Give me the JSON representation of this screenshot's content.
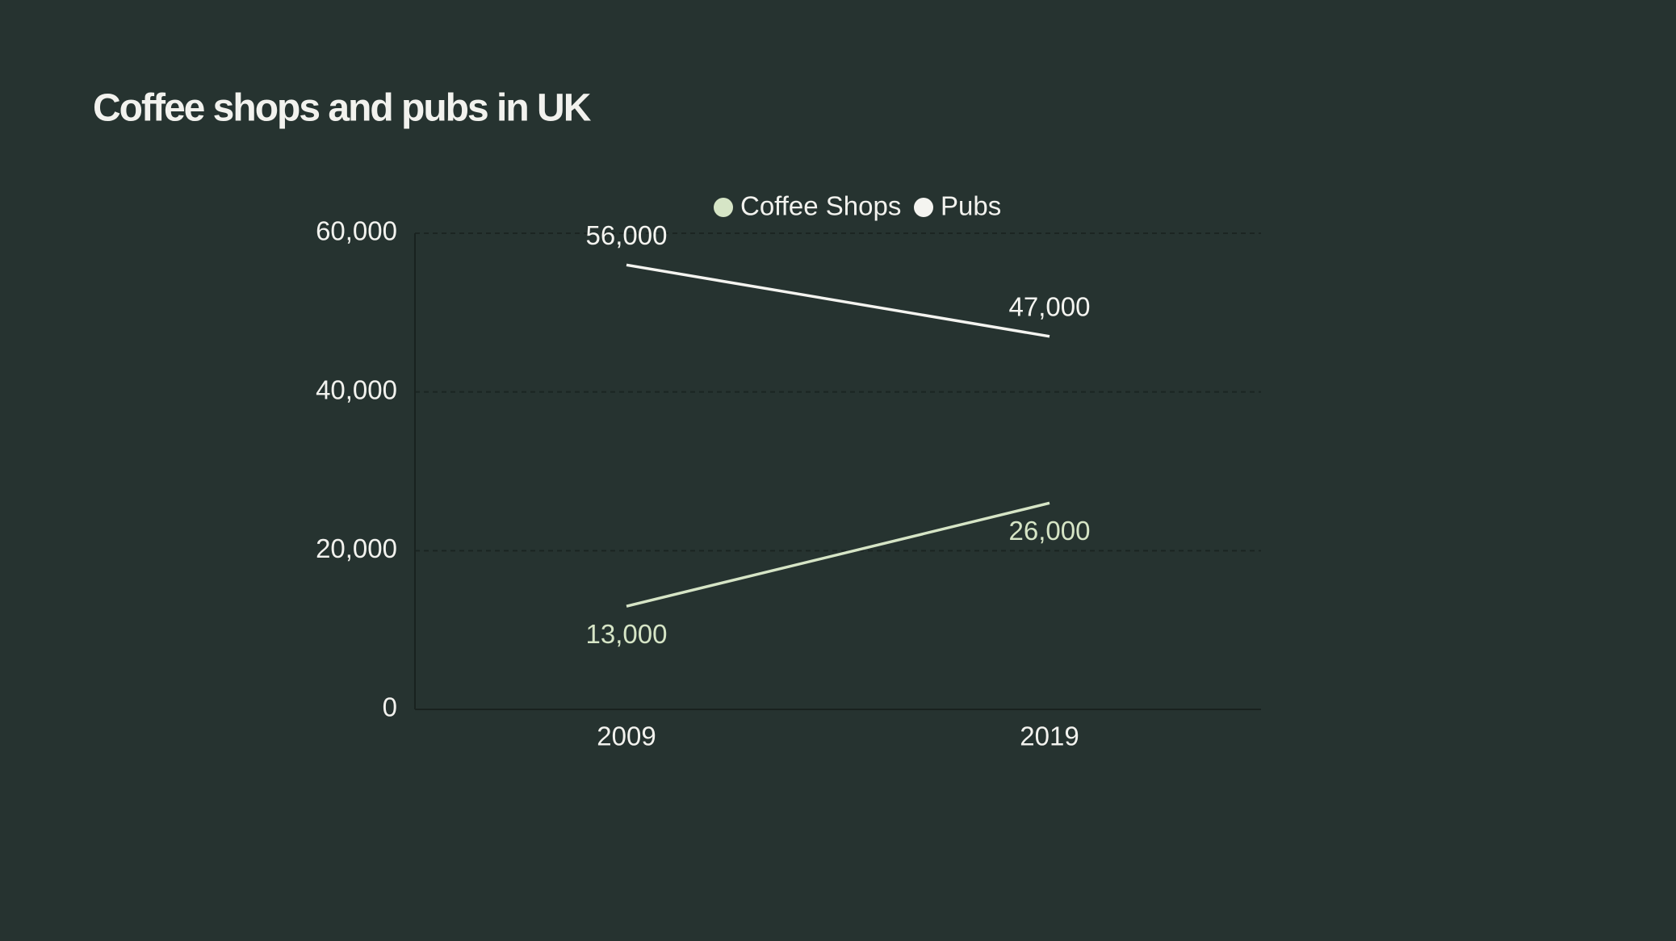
{
  "chart_data": {
    "type": "line",
    "title": "Coffee shops and pubs in UK",
    "categories": [
      "2009",
      "2019"
    ],
    "series": [
      {
        "name": "Coffee Shops",
        "color": "#d6e5c6",
        "values": [
          13000,
          26000
        ],
        "value_labels": [
          "13,000",
          "26,000"
        ]
      },
      {
        "name": "Pubs",
        "color": "#f4f4f0",
        "values": [
          56000,
          47000
        ],
        "value_labels": [
          "56,000",
          "47,000"
        ]
      }
    ],
    "ylim": [
      0,
      60000
    ],
    "yticks": [
      0,
      {
        "value": 20000,
        "label": "20,000"
      },
      {
        "value": 40000,
        "label": "40,000"
      },
      {
        "value": 60000,
        "label": "60,000"
      }
    ],
    "grid": true,
    "legend": "top"
  }
}
